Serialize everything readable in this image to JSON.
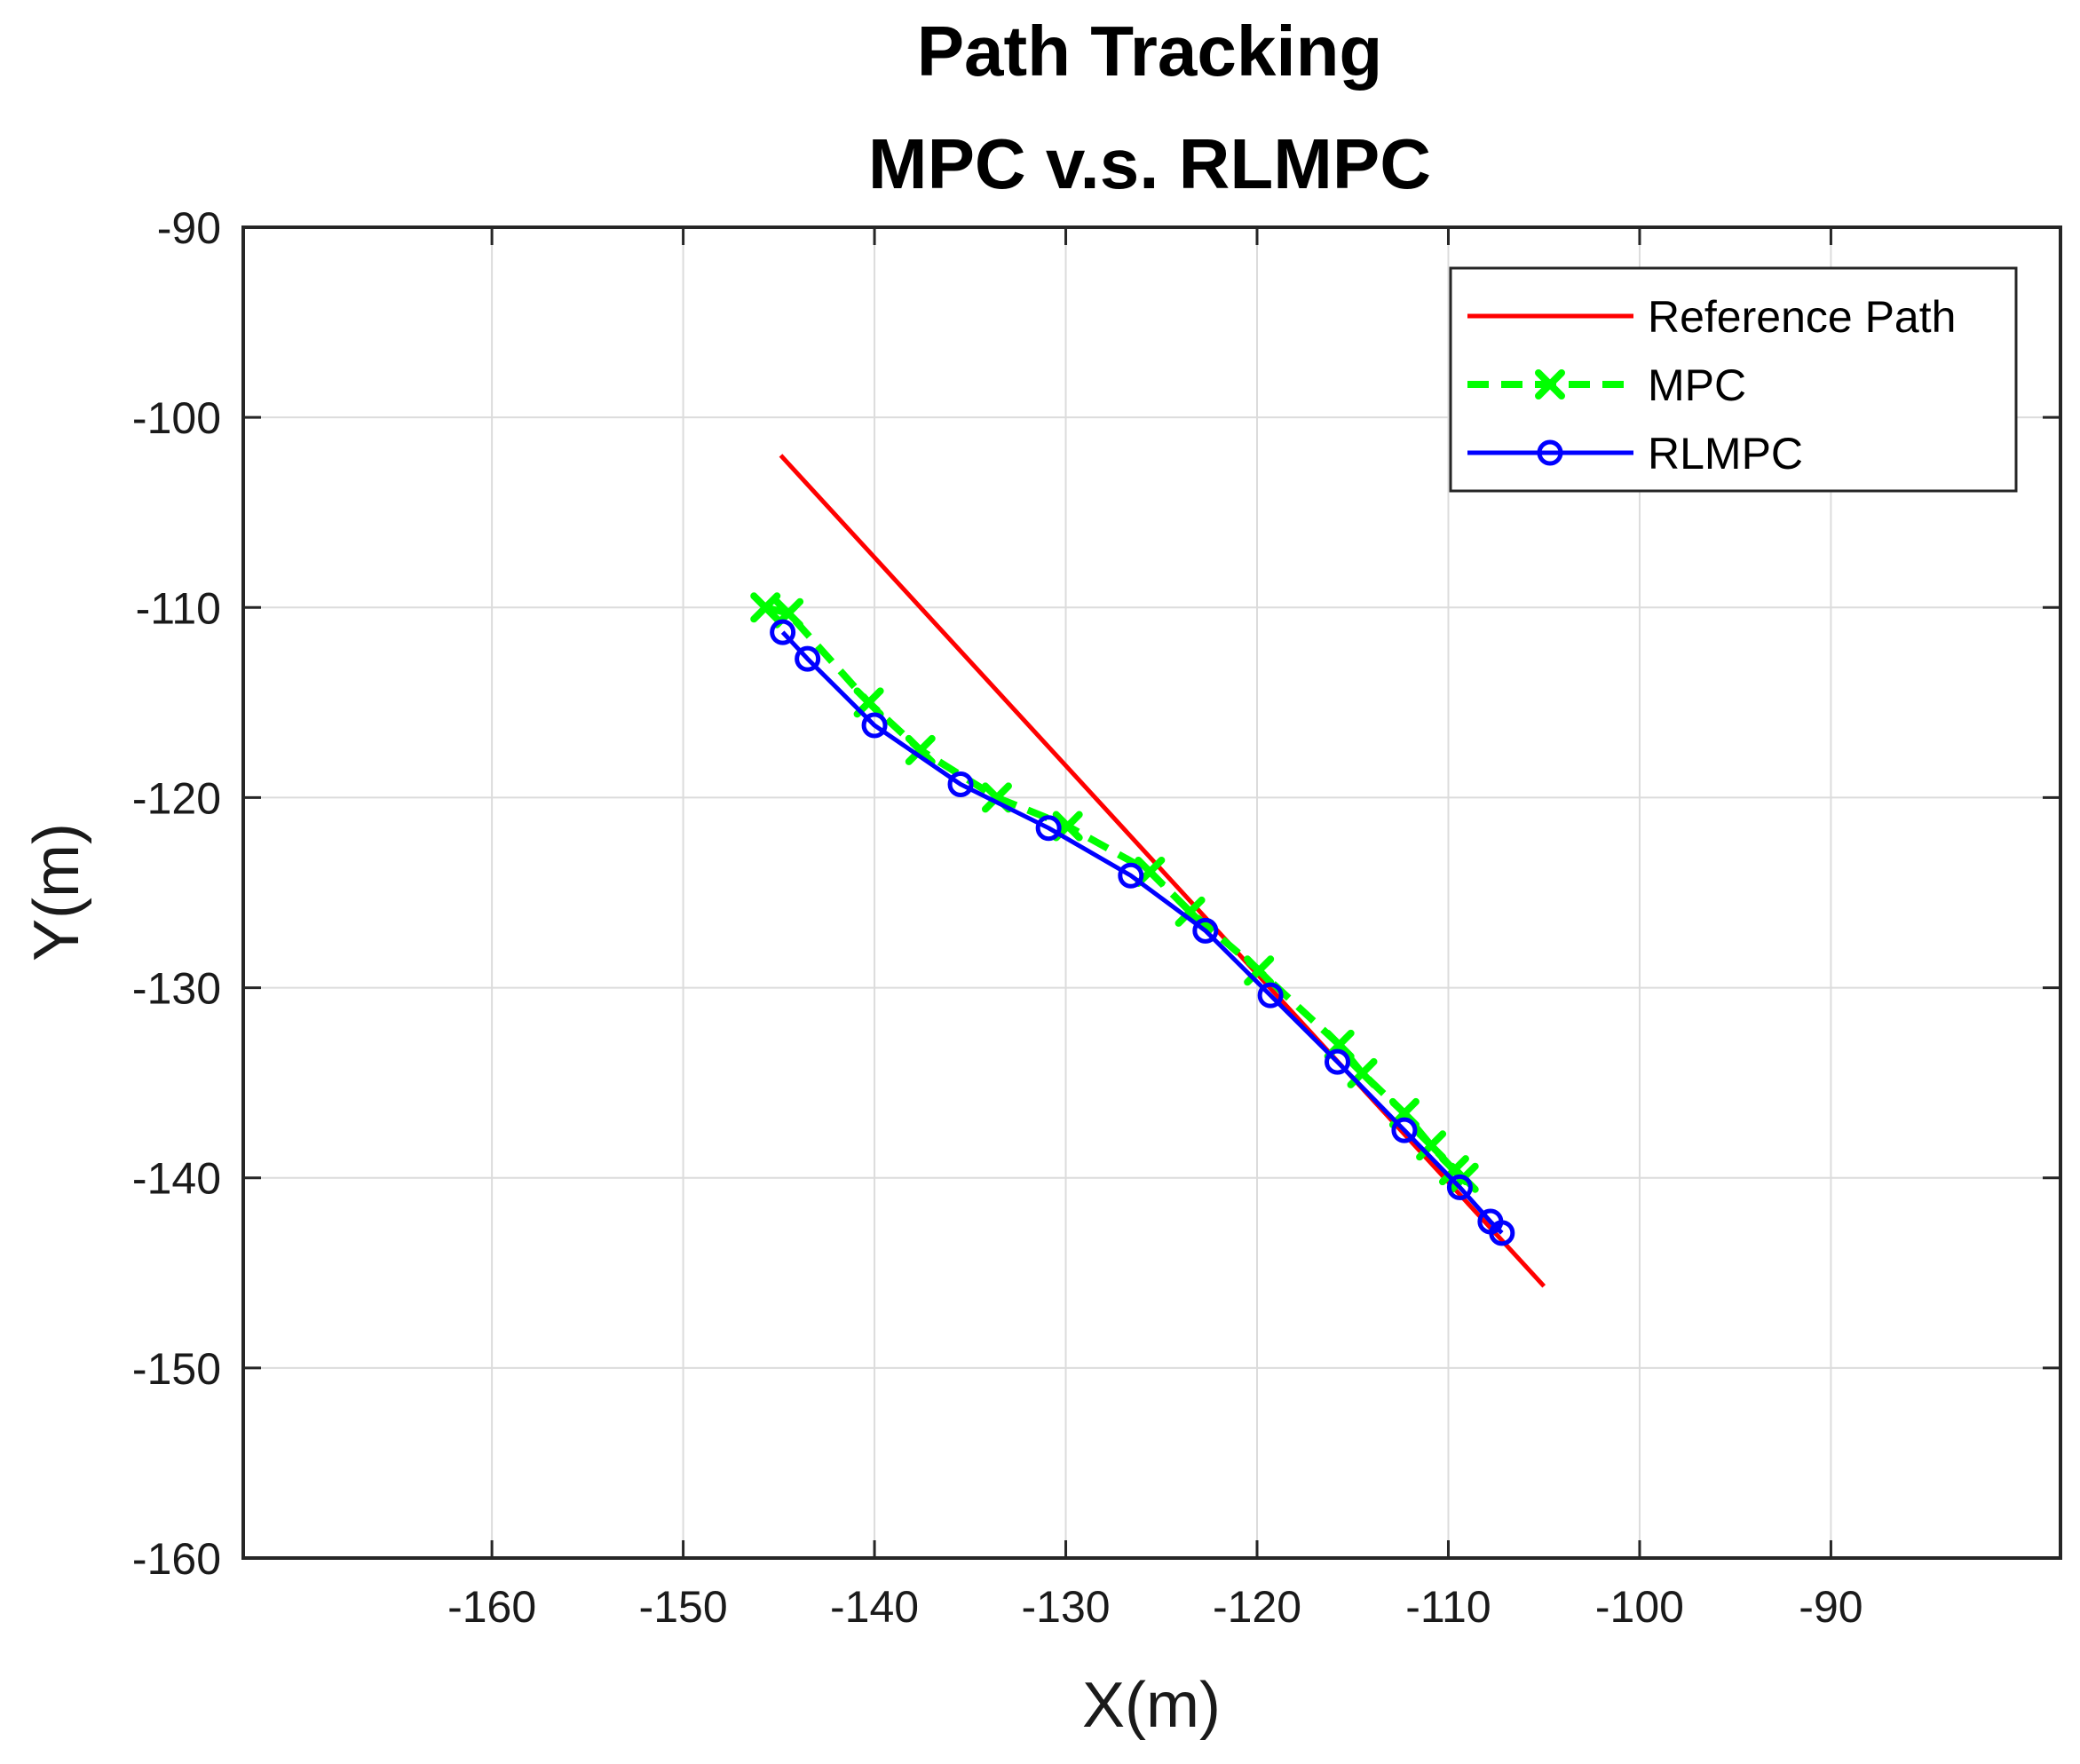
{
  "chart_data": {
    "type": "line",
    "title": "Path Tracking",
    "subtitle": "MPC v.s. RLMPC",
    "xlabel": "X(m)",
    "ylabel": "Y(m)",
    "xlim": [
      -173,
      -78
    ],
    "ylim": [
      -160,
      -90
    ],
    "xticks": [
      -160,
      -150,
      -140,
      -130,
      -120,
      -110,
      -100,
      -90
    ],
    "yticks": [
      -90,
      -100,
      -110,
      -120,
      -130,
      -140,
      -150,
      -160
    ],
    "xtick_labels": [
      "-160",
      "-150",
      "-140",
      "-130",
      "-120",
      "-110",
      "-100",
      "-90"
    ],
    "ytick_labels": [
      "-90",
      "-100",
      "-110",
      "-120",
      "-130",
      "-140",
      "-150",
      "-160"
    ],
    "grid": true,
    "legend_position": "top-right",
    "series": [
      {
        "name": "Reference Path",
        "color": "#ff0000",
        "style": "solid",
        "marker": "none",
        "x": [
          -144.9,
          -105.0
        ],
        "y": [
          -102.0,
          -145.7
        ]
      },
      {
        "name": "MPC",
        "color": "#00ff00",
        "style": "dashed",
        "marker": "x",
        "x": [
          -145.7,
          -144.5,
          -140.3,
          -137.6,
          -133.6,
          -129.9,
          -125.6,
          -123.5,
          -119.9,
          -115.7,
          -114.5,
          -112.3,
          -110.9,
          -109.7,
          -109.2
        ],
        "y": [
          -110.0,
          -110.3,
          -115.0,
          -117.5,
          -120.0,
          -121.5,
          -123.9,
          -126.0,
          -129.1,
          -133.0,
          -134.5,
          -136.6,
          -138.3,
          -139.6,
          -140.0
        ]
      },
      {
        "name": "RLMPC",
        "color": "#0000ff",
        "style": "solid",
        "marker": "o",
        "x": [
          -144.8,
          -143.5,
          -140.0,
          -135.5,
          -130.9,
          -126.6,
          -122.7,
          -119.3,
          -115.8,
          -112.3,
          -109.4,
          -107.8,
          -107.2
        ],
        "y": [
          -111.3,
          -112.7,
          -116.2,
          -119.3,
          -121.6,
          -124.1,
          -127.0,
          -130.4,
          -133.9,
          -137.5,
          -140.5,
          -142.3,
          -142.9
        ]
      }
    ]
  }
}
